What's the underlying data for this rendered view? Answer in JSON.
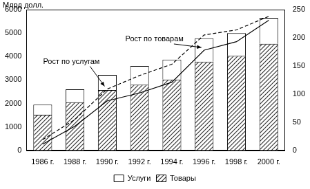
{
  "chart_data": {
    "type": "bar",
    "y_label": "Млрд долл.",
    "categories": [
      "1986 г.",
      "1988 г.",
      "1990 г.",
      "1992 г.",
      "1994 г.",
      "1996 г.",
      "1998 г.",
      "2000 г."
    ],
    "series": [
      {
        "name": "Товары",
        "color": "#333333",
        "values": [
          1520,
          2050,
          2570,
          2800,
          3020,
          3780,
          4030,
          4540
        ]
      },
      {
        "name": "Услуги",
        "color": "#ffffff",
        "values": [
          430,
          550,
          650,
          800,
          850,
          1000,
          970,
          1110
        ]
      },
      {
        "name": "Рост по товарам",
        "type": "line",
        "axis": "y2",
        "color": "#000000",
        "line_style": "solid",
        "values": [
          11,
          43,
          88,
          102,
          121,
          178,
          193,
          231
        ]
      },
      {
        "name": "Рост по услугам",
        "type": "line",
        "axis": "y2",
        "color": "#000000",
        "line_style": "dashed",
        "values": [
          19,
          55,
          109,
          133,
          153,
          205,
          214,
          238
        ]
      }
    ],
    "ylim": [
      0,
      6000
    ],
    "yticks": [
      0,
      1000,
      2000,
      3000,
      4000,
      5000,
      6000
    ],
    "y2lim": [
      0,
      250
    ],
    "y2ticks": [
      0,
      50,
      100,
      150,
      200,
      250
    ],
    "stacked": true,
    "grid": false,
    "legend": "bottom"
  }
}
